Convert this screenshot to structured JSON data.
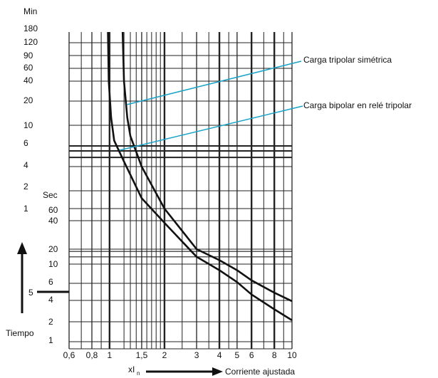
{
  "chart_data": {
    "type": "line",
    "title": "",
    "x_axis": {
      "label_prefix": "xI",
      "label_subscript": "n",
      "label": "Corriente ajustada",
      "scale": "log",
      "ticks": [
        "0,6",
        "0,8",
        "1",
        "1,5",
        "2",
        "3",
        "4",
        "5",
        "6",
        "8",
        "10"
      ],
      "tick_values": [
        0.6,
        0.8,
        1,
        1.5,
        2,
        3,
        4,
        5,
        6,
        8,
        10
      ],
      "xlim": [
        0.6,
        10
      ]
    },
    "y_axis": {
      "label": "Tiempo",
      "unit_min": "Min",
      "unit_sec": "Sec",
      "scale": "log",
      "ticks_min": [
        "180",
        "120",
        "90",
        "60",
        "40",
        "20",
        "10",
        "6",
        "4",
        "2",
        "1"
      ],
      "ticks_sec": [
        "60",
        "40",
        "20",
        "10",
        "6",
        "4",
        "2",
        "1"
      ],
      "ylim_seconds": [
        0.9,
        12000
      ]
    },
    "grid": true,
    "series": [
      {
        "name": "Carga tripolar simétrica",
        "x": [
          1.18,
          1.2,
          1.25,
          1.3,
          1.5,
          2,
          3,
          4,
          5,
          6,
          8,
          10
        ],
        "y_seconds": [
          12000,
          3600,
          1500,
          840,
          240,
          60,
          20,
          12,
          8.5,
          6.5,
          4.8,
          3.9
        ]
      },
      {
        "name": "Carga bipolar en relé tripolar",
        "x": [
          0.98,
          0.99,
          1.02,
          1.06,
          1.2,
          1.5,
          2,
          3,
          4,
          5,
          6,
          8,
          10
        ],
        "y_seconds": [
          12000,
          3600,
          1500,
          720,
          300,
          90,
          38,
          14,
          8.5,
          6.2,
          4.6,
          3.0,
          2.1
        ]
      }
    ]
  },
  "annotations": {
    "tripolar": "Carga tripolar simétrica",
    "bipolar": "Carga bipolar en relé tripolar",
    "marker": "5"
  },
  "colors": {
    "grid": "#222222",
    "curve": "#111111",
    "leader": "#1aa3c8"
  }
}
